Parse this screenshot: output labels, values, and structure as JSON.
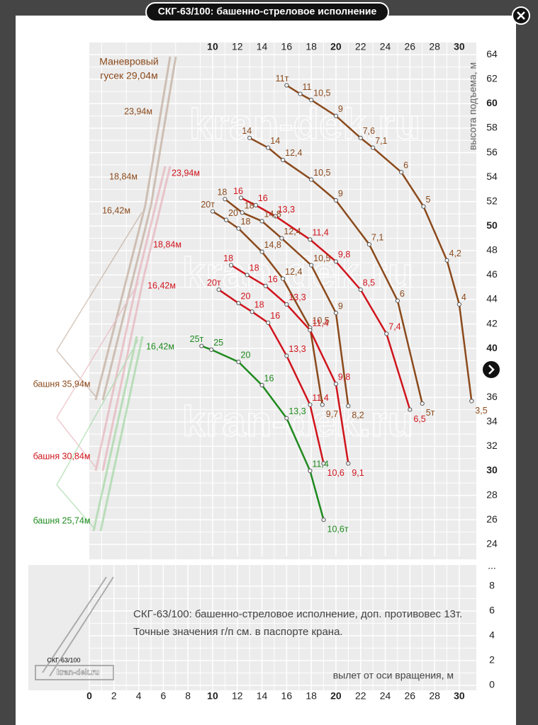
{
  "page_title": "СКГ-63/100: башенно-стреловое исполнение",
  "chart_data": {
    "type": "line",
    "xlim": [
      0,
      31.5
    ],
    "ylim": [
      23,
      65
    ],
    "xticks": [
      10,
      12,
      14,
      16,
      18,
      20,
      22,
      24,
      26,
      28,
      30
    ],
    "yticks": [
      24,
      26,
      28,
      30,
      32,
      34,
      36,
      38,
      40,
      42,
      44,
      46,
      48,
      50,
      52,
      54,
      56,
      58,
      60,
      62,
      64
    ],
    "y_break_label": "...",
    "ylabel": "высота подъема, м",
    "xlabel": "вылет от оси вращения, м",
    "grid": true,
    "series": [
      {
        "color": "#8b4a1c",
        "x": [
          16,
          17.1,
          18,
          20,
          22,
          23,
          25.3,
          27.1,
          29,
          30,
          31
        ],
        "values": [
          61.5,
          60.8,
          60.3,
          59,
          57.2,
          56.4,
          54.4,
          51.6,
          47.2,
          43.6,
          35.7
        ],
        "point_labels": [
          "11т",
          "11",
          "10,5",
          "9",
          "7,6",
          "7,1",
          "6",
          "5",
          "4,2",
          "4",
          "3,5"
        ]
      },
      {
        "color": "#8b4a1c",
        "x": [
          13,
          14.5,
          15.7,
          18,
          20,
          22.7,
          25,
          27
        ],
        "values": [
          57.2,
          56.4,
          55.4,
          53.8,
          52.1,
          48.5,
          43.9,
          35.5
        ],
        "point_labels": [
          "14",
          "14",
          "12,4",
          "10,5",
          "9",
          "7,1",
          "6",
          "5т"
        ]
      },
      {
        "color": "#8b4a1c",
        "x": [
          11,
          12.4,
          14,
          15.6,
          18,
          20,
          21
        ],
        "values": [
          52.2,
          51.1,
          50.4,
          49,
          46.8,
          42.9,
          35.3
        ],
        "point_labels": [
          "18",
          "18",
          "14,8",
          "12,4",
          "10,5",
          "9",
          "8,2"
        ]
      },
      {
        "color": "#8b4a1c",
        "x": [
          10,
          11.1,
          12.1,
          14,
          15.7,
          17.9,
          18.9
        ],
        "values": [
          51.2,
          50.5,
          49.8,
          47.9,
          45.7,
          41.7,
          35.4
        ],
        "point_labels": [
          "20т",
          "20",
          "18",
          "14,8",
          "12,4",
          "10,5",
          "9,7"
        ]
      },
      {
        "color": "#d0141c",
        "x": [
          12.3,
          13.5,
          15.1,
          17.9,
          20,
          22,
          24.1,
          26
        ],
        "values": [
          52.3,
          51.7,
          50.8,
          48.9,
          47.1,
          44.8,
          41.2,
          35
        ],
        "point_labels": [
          "16",
          "16",
          "13,3",
          "11,4",
          "9,8",
          "8,5",
          "7,4",
          "6,5"
        ]
      },
      {
        "color": "#d0141c",
        "x": [
          11.5,
          12.8,
          14.3,
          16,
          17.9,
          20,
          21
        ],
        "values": [
          46.8,
          46,
          45.1,
          43.6,
          41.5,
          37.1,
          30.6
        ],
        "point_labels": [
          "18",
          "18",
          "16",
          "13,3",
          "11,4",
          "9,8",
          "9,1"
        ]
      },
      {
        "color": "#d0141c",
        "x": [
          10.5,
          12.1,
          13.2,
          14.5,
          16,
          17.9,
          19
        ],
        "values": [
          44.8,
          43.7,
          43,
          42.1,
          39.4,
          35.4,
          30.6
        ],
        "point_labels": [
          "20т",
          "20",
          "18",
          "16",
          "13,3",
          "11,4",
          "10,6"
        ]
      },
      {
        "color": "#1f8a1f",
        "x": [
          9.1,
          9.9,
          12.1,
          14,
          16,
          17.9,
          19
        ],
        "values": [
          40.2,
          39.9,
          38.9,
          37,
          34.3,
          30,
          26
        ],
        "point_labels": [
          "25т",
          "25",
          "20",
          "16",
          "13,3",
          "11,4",
          "10,6т"
        ]
      }
    ],
    "annotations": [
      {
        "text": "Маневровый",
        "color": "#8b4a1c"
      },
      {
        "text": "гусек 29,04м",
        "color": "#8b4a1c"
      },
      {
        "text": "23,94м",
        "color": "#8b4a1c"
      },
      {
        "text": "18,84м",
        "color": "#8b4a1c"
      },
      {
        "text": "16,42м",
        "color": "#8b4a1c"
      },
      {
        "text": "23,94м",
        "color": "#d0141c"
      },
      {
        "text": "18,84м",
        "color": "#d0141c"
      },
      {
        "text": "16,42м",
        "color": "#d0141c"
      },
      {
        "text": "16,42м",
        "color": "#1f8a1f"
      },
      {
        "text": "башня 35,94м",
        "color": "#8b4a1c"
      },
      {
        "text": "башня 30,84м",
        "color": "#d0141c"
      },
      {
        "text": "башня 25,74м",
        "color": "#1f8a1f"
      }
    ]
  },
  "lower_panel": {
    "ylim": [
      -0.4,
      9.7
    ],
    "yticks": [
      0,
      2,
      4,
      6,
      8
    ],
    "xticks": [
      0,
      2,
      4,
      6,
      8,
      10,
      12,
      14,
      16,
      18,
      20,
      22,
      24,
      26,
      28,
      30
    ],
    "note": [
      "СКГ-63/100: башенно-стреловое исполнение, доп. противовес 13т.",
      "Точные значения г/п см. в паспорте крана."
    ],
    "thumbnail_labels": [
      "СКГ-63/100",
      "kran-dek.ru"
    ]
  },
  "watermark": "kran-dek.ru"
}
